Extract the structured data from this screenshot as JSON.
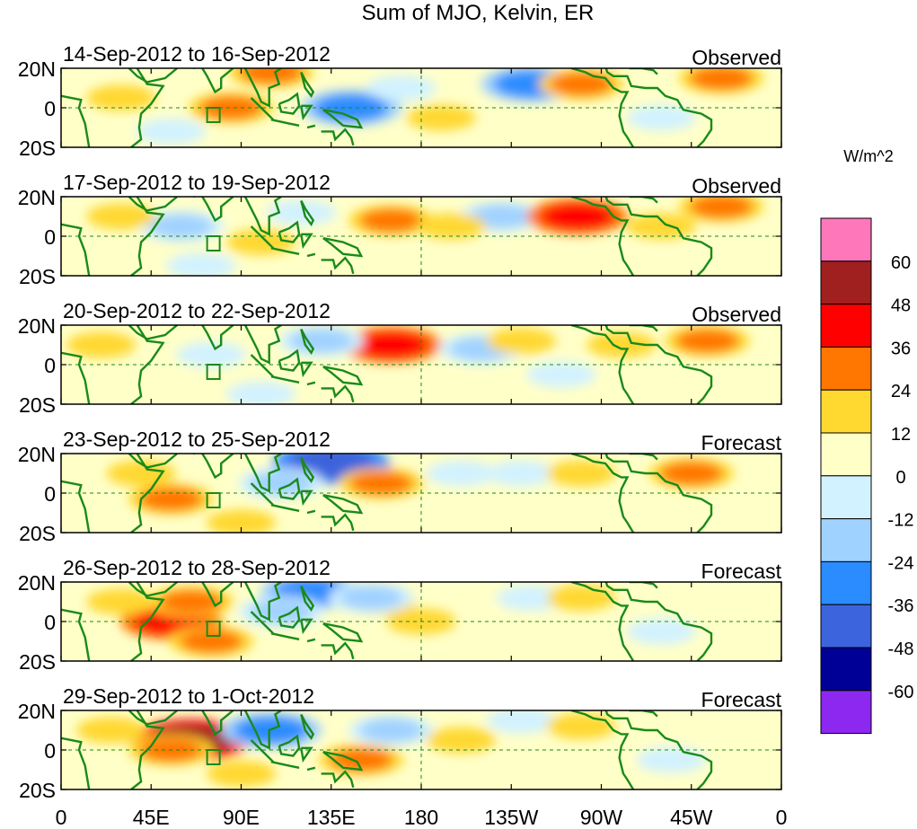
{
  "chart_data": {
    "type": "heatmap",
    "title": "Sum of MJO, Kelvin, ER",
    "units": "W/m^2",
    "x_ticks": [
      "0",
      "45E",
      "90E",
      "135E",
      "180",
      "135W",
      "90W",
      "45W",
      "0"
    ],
    "x_range_deg": [
      0,
      360
    ],
    "y_ticks": [
      "20N",
      "0",
      "20S"
    ],
    "y_range_deg": [
      -20,
      20
    ],
    "colorbar": {
      "levels": [
        "60",
        "48",
        "36",
        "24",
        "12",
        "0",
        "-12",
        "-24",
        "-36",
        "-48",
        "-60"
      ],
      "colors": [
        "#ff77bb",
        "#a02020",
        "#ff0000",
        "#ff7700",
        "#ffd830",
        "#ffffc8",
        "#d2f2ff",
        "#a0d2ff",
        "#2a8cff",
        "#3c64dc",
        "#000096",
        "#8c28f0"
      ]
    },
    "panels": [
      {
        "period": "14-Sep-2012 to 16-Sep-2012",
        "kind": "Observed",
        "blobs": [
          {
            "lon": 105,
            "lat": 18,
            "value": 24
          },
          {
            "lon": 85,
            "lat": 0,
            "value": 24
          },
          {
            "lon": 145,
            "lat": 0,
            "value": -36
          },
          {
            "lon": 235,
            "lat": 12,
            "value": -36
          },
          {
            "lon": 260,
            "lat": 12,
            "value": 24
          },
          {
            "lon": 330,
            "lat": 15,
            "value": 24
          },
          {
            "lon": 30,
            "lat": 5,
            "value": 12
          },
          {
            "lon": 190,
            "lat": -5,
            "value": 12
          },
          {
            "lon": 55,
            "lat": -12,
            "value": -12
          },
          {
            "lon": 170,
            "lat": 10,
            "value": -12
          },
          {
            "lon": 300,
            "lat": -5,
            "value": -12
          }
        ]
      },
      {
        "period": "17-Sep-2012 to 19-Sep-2012",
        "kind": "Observed",
        "blobs": [
          {
            "lon": 165,
            "lat": 8,
            "value": 24
          },
          {
            "lon": 220,
            "lat": 10,
            "value": -24
          },
          {
            "lon": 258,
            "lat": 10,
            "value": 36
          },
          {
            "lon": 330,
            "lat": 15,
            "value": 24
          },
          {
            "lon": 60,
            "lat": 5,
            "value": -24
          },
          {
            "lon": 70,
            "lat": -15,
            "value": -12
          },
          {
            "lon": 120,
            "lat": 12,
            "value": -12
          },
          {
            "lon": 30,
            "lat": 10,
            "value": 12
          },
          {
            "lon": 100,
            "lat": -3,
            "value": 12
          },
          {
            "lon": 195,
            "lat": 5,
            "value": 12
          },
          {
            "lon": 300,
            "lat": 5,
            "value": 12
          }
        ]
      },
      {
        "period": "20-Sep-2012 to 22-Sep-2012",
        "kind": "Observed",
        "blobs": [
          {
            "lon": 165,
            "lat": 10,
            "value": 36
          },
          {
            "lon": 130,
            "lat": 12,
            "value": -24
          },
          {
            "lon": 210,
            "lat": 8,
            "value": -24
          },
          {
            "lon": 230,
            "lat": 12,
            "value": 12
          },
          {
            "lon": 323,
            "lat": 12,
            "value": 24
          },
          {
            "lon": 75,
            "lat": 5,
            "value": -12
          },
          {
            "lon": 100,
            "lat": -15,
            "value": -12
          },
          {
            "lon": 250,
            "lat": -5,
            "value": -12
          },
          {
            "lon": 20,
            "lat": 10,
            "value": 12
          },
          {
            "lon": 280,
            "lat": 10,
            "value": 12
          }
        ]
      },
      {
        "period": "23-Sep-2012 to 25-Sep-2012",
        "kind": "Forecast",
        "blobs": [
          {
            "lon": 135,
            "lat": 15,
            "value": -48
          },
          {
            "lon": 110,
            "lat": 5,
            "value": -24
          },
          {
            "lon": 160,
            "lat": 5,
            "value": 24
          },
          {
            "lon": 55,
            "lat": -3,
            "value": 24
          },
          {
            "lon": 315,
            "lat": 10,
            "value": 24
          },
          {
            "lon": 230,
            "lat": 10,
            "value": -12
          },
          {
            "lon": 200,
            "lat": 10,
            "value": -12
          },
          {
            "lon": 260,
            "lat": 10,
            "value": 12
          },
          {
            "lon": 90,
            "lat": -15,
            "value": 12
          },
          {
            "lon": 40,
            "lat": 10,
            "value": 12
          }
        ]
      },
      {
        "period": "26-Sep-2012 to 28-Sep-2012",
        "kind": "Forecast",
        "blobs": [
          {
            "lon": 55,
            "lat": 0,
            "value": 36
          },
          {
            "lon": 65,
            "lat": 10,
            "value": 24
          },
          {
            "lon": 75,
            "lat": -10,
            "value": 24
          },
          {
            "lon": 125,
            "lat": 15,
            "value": -36
          },
          {
            "lon": 110,
            "lat": 5,
            "value": -24
          },
          {
            "lon": 160,
            "lat": 10,
            "value": 12
          },
          {
            "lon": 155,
            "lat": 12,
            "value": -24
          },
          {
            "lon": 180,
            "lat": 0,
            "value": 12
          },
          {
            "lon": 235,
            "lat": 12,
            "value": -12
          },
          {
            "lon": 260,
            "lat": 12,
            "value": 12
          },
          {
            "lon": 300,
            "lat": -5,
            "value": -12
          },
          {
            "lon": 30,
            "lat": 10,
            "value": 12
          }
        ]
      },
      {
        "period": "29-Sep-2012 to 1-Oct-2012",
        "kind": "Forecast",
        "blobs": [
          {
            "lon": 65,
            "lat": 5,
            "value": 48
          },
          {
            "lon": 55,
            "lat": 0,
            "value": 24
          },
          {
            "lon": 105,
            "lat": 10,
            "value": -36
          },
          {
            "lon": 165,
            "lat": 10,
            "value": -24
          },
          {
            "lon": 150,
            "lat": -5,
            "value": 24
          },
          {
            "lon": 230,
            "lat": 15,
            "value": -12
          },
          {
            "lon": 260,
            "lat": 12,
            "value": 12
          },
          {
            "lon": 200,
            "lat": 5,
            "value": 12
          },
          {
            "lon": 305,
            "lat": -5,
            "value": -12
          },
          {
            "lon": 25,
            "lat": 10,
            "value": 12
          },
          {
            "lon": 90,
            "lat": -12,
            "value": 12
          }
        ]
      }
    ]
  }
}
